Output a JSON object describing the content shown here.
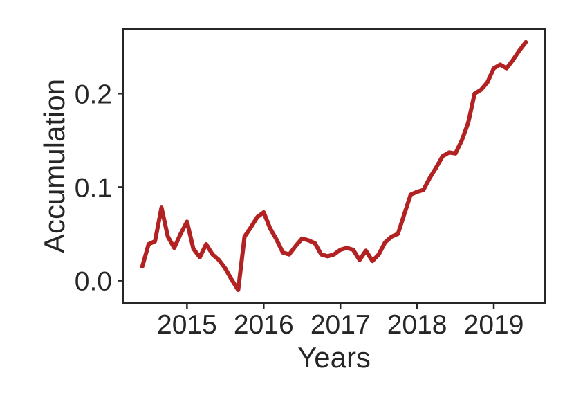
{
  "figure": {
    "background": "#ffffff",
    "text_color": "#262626",
    "axis_color": "#262626"
  },
  "chart_data": {
    "type": "line",
    "title": "",
    "xlabel": "Years",
    "ylabel": "Accumulation",
    "grid": false,
    "legend": "none",
    "xlim": [
      2014.167,
      2019.667
    ],
    "ylim": [
      -0.024,
      0.269
    ],
    "x_ticks": {
      "values": [
        2015,
        2016,
        2017,
        2018,
        2019
      ],
      "labels": [
        "2015",
        "2016",
        "2017",
        "2018",
        "2019"
      ]
    },
    "y_ticks": {
      "values": [
        0.0,
        0.1,
        0.2
      ],
      "labels": [
        "0.0",
        "0.1",
        "0.2"
      ]
    },
    "series": [
      {
        "name": "accumulation",
        "color": "#b22222",
        "line_width": 6,
        "x": [
          2014.417,
          2014.5,
          2014.583,
          2014.667,
          2014.75,
          2014.833,
          2014.917,
          2015.0,
          2015.083,
          2015.167,
          2015.25,
          2015.333,
          2015.417,
          2015.5,
          2015.583,
          2015.667,
          2015.75,
          2015.833,
          2015.917,
          2016.0,
          2016.083,
          2016.167,
          2016.25,
          2016.333,
          2016.417,
          2016.5,
          2016.583,
          2016.667,
          2016.75,
          2016.833,
          2016.917,
          2017.0,
          2017.083,
          2017.167,
          2017.25,
          2017.333,
          2017.417,
          2017.5,
          2017.583,
          2017.667,
          2017.75,
          2017.833,
          2017.917,
          2018.0,
          2018.083,
          2018.167,
          2018.25,
          2018.333,
          2018.417,
          2018.5,
          2018.583,
          2018.667,
          2018.75,
          2018.833,
          2018.917,
          2019.0,
          2019.083,
          2019.167,
          2019.25,
          2019.333,
          2019.417
        ],
        "y": [
          0.015,
          0.039,
          0.042,
          0.078,
          0.047,
          0.035,
          0.05,
          0.063,
          0.034,
          0.025,
          0.039,
          0.028,
          0.022,
          0.013,
          0.001,
          -0.01,
          0.047,
          0.057,
          0.068,
          0.073,
          0.056,
          0.044,
          0.03,
          0.028,
          0.037,
          0.045,
          0.043,
          0.04,
          0.028,
          0.026,
          0.028,
          0.033,
          0.035,
          0.033,
          0.022,
          0.032,
          0.021,
          0.028,
          0.041,
          0.047,
          0.05,
          0.071,
          0.092,
          0.095,
          0.097,
          0.11,
          0.121,
          0.133,
          0.137,
          0.136,
          0.15,
          0.169,
          0.2,
          0.204,
          0.212,
          0.227,
          0.231,
          0.227,
          0.236,
          0.246,
          0.255
        ]
      }
    ]
  }
}
